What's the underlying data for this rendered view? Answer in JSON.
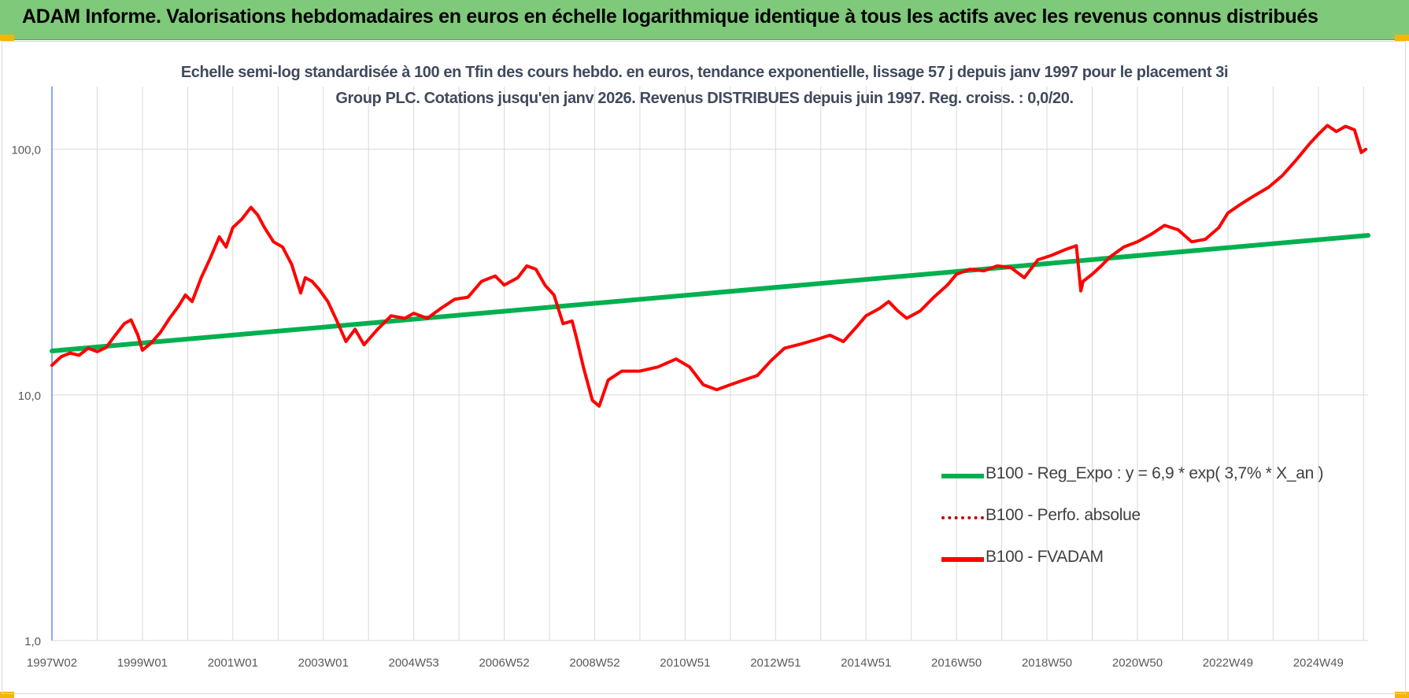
{
  "banner": {
    "title": "ADAM Informe. Valorisations hebdomadaires en euros en échelle logarithmique identique à tous les actifs avec les revenus connus distribués"
  },
  "colors": {
    "banner_bg": "#7fc97a",
    "corner_accent": "#f2b705",
    "trend_line": "#00b050",
    "fvadam_line": "#ff0000",
    "perfo_line": "#c00000",
    "title_text": "#404a5e",
    "grid": "#d9d9d9",
    "axis": "#4472c4"
  },
  "chart_data": {
    "type": "line",
    "title": "Echelle semi-log standardisée à 100 en Tfin des cours hebdo. en euros, tendance exponentielle, lissage 57 j depuis janv 1997 pour le placement 3i Group PLC. Cotations jusqu'en janv 2026. Revenus DISTRIBUES depuis juin 1997. Reg. croiss. : 0,0/20.",
    "xlabel": "",
    "ylabel": "",
    "y_scale": "log",
    "ylim": [
      1,
      180
    ],
    "y_ticks": [
      1,
      10,
      100
    ],
    "y_tick_labels": [
      "1,0",
      "10,0",
      "100,0"
    ],
    "xlim": [
      1997.0,
      2026.1
    ],
    "x_tick_labels": [
      "1997W02",
      "1999W01",
      "2001W01",
      "2003W01",
      "2004W53",
      "2006W52",
      "2008W52",
      "2010W51",
      "2012W51",
      "2014W51",
      "2016W50",
      "2018W50",
      "2020W50",
      "2022W49",
      "2024W49"
    ],
    "x_tick_positions": [
      1997.0,
      1999.0,
      2001.0,
      2003.0,
      2005.0,
      2007.0,
      2009.0,
      2011.0,
      2013.0,
      2015.0,
      2017.0,
      2019.0,
      2021.0,
      2023.0,
      2025.0
    ],
    "grid": true,
    "legend_position": "bottom-right",
    "series": [
      {
        "name": "B100 - Reg_Expo : y = 6,9 * exp( 3,7% *  X_an )",
        "style": "solid",
        "color": "#00b050",
        "x": [
          1997.0,
          2026.1
        ],
        "values": [
          15.1,
          44.6
        ]
      },
      {
        "name": "B100 - Perfo. absolue",
        "style": "dotted",
        "color": "#c00000",
        "x": [],
        "values": []
      },
      {
        "name": "B100 - FVADAM",
        "style": "solid",
        "color": "#ff0000",
        "x": [
          1997.0,
          1997.2,
          1997.4,
          1997.6,
          1997.8,
          1998.0,
          1998.2,
          1998.4,
          1998.6,
          1998.75,
          1998.9,
          1999.0,
          1999.2,
          1999.4,
          1999.6,
          1999.8,
          1999.95,
          2000.1,
          2000.3,
          2000.5,
          2000.7,
          2000.85,
          2001.0,
          2001.2,
          2001.4,
          2001.55,
          2001.7,
          2001.9,
          2002.1,
          2002.3,
          2002.5,
          2002.6,
          2002.75,
          2002.9,
          2003.1,
          2003.3,
          2003.5,
          2003.7,
          2003.9,
          2004.2,
          2004.5,
          2004.8,
          2005.0,
          2005.3,
          2005.6,
          2005.9,
          2006.2,
          2006.5,
          2006.8,
          2007.0,
          2007.3,
          2007.5,
          2007.7,
          2007.9,
          2008.1,
          2008.3,
          2008.5,
          2008.6,
          2008.75,
          2008.95,
          2009.1,
          2009.3,
          2009.6,
          2010.0,
          2010.4,
          2010.8,
          2011.1,
          2011.4,
          2011.7,
          2012.0,
          2012.3,
          2012.6,
          2012.9,
          2013.2,
          2013.5,
          2013.9,
          2014.2,
          2014.5,
          2014.8,
          2015.0,
          2015.3,
          2015.5,
          2015.7,
          2015.9,
          2016.2,
          2016.5,
          2016.8,
          2017.0,
          2017.3,
          2017.6,
          2017.9,
          2018.2,
          2018.5,
          2018.8,
          2019.1,
          2019.4,
          2019.65,
          2019.75,
          2019.8,
          2020.0,
          2020.2,
          2020.4,
          2020.7,
          2021.0,
          2021.3,
          2021.6,
          2021.9,
          2022.2,
          2022.5,
          2022.8,
          2023.0,
          2023.3,
          2023.6,
          2023.9,
          2024.2,
          2024.5,
          2024.8,
          2025.0,
          2025.2,
          2025.4,
          2025.6,
          2025.8,
          2025.95,
          2026.05
        ],
        "values": [
          13.2,
          14.3,
          14.8,
          14.5,
          15.5,
          15.0,
          15.6,
          17.5,
          19.5,
          20.2,
          17.5,
          15.2,
          16.3,
          18.0,
          20.5,
          23.0,
          25.5,
          24.0,
          30.0,
          36.0,
          44.0,
          40.0,
          48.0,
          52.0,
          58.0,
          54.0,
          48.0,
          42.0,
          40.0,
          34.0,
          26.0,
          30.0,
          29.0,
          27.0,
          24.0,
          20.0,
          16.5,
          18.5,
          16.0,
          18.5,
          21.0,
          20.5,
          21.5,
          20.5,
          22.5,
          24.5,
          25.0,
          29.0,
          30.5,
          28.0,
          30.0,
          33.5,
          32.5,
          28.0,
          25.5,
          19.5,
          20.0,
          17.0,
          13.0,
          9.5,
          9.0,
          11.5,
          12.5,
          12.5,
          13.0,
          14.0,
          13.0,
          11.0,
          10.5,
          11.0,
          11.5,
          12.0,
          13.8,
          15.5,
          16.0,
          16.8,
          17.5,
          16.5,
          19.0,
          21.0,
          22.5,
          24.0,
          22.0,
          20.5,
          22.0,
          25.0,
          28.0,
          31.0,
          32.5,
          32.0,
          33.5,
          33.0,
          30.0,
          35.5,
          37.0,
          39.0,
          40.5,
          26.5,
          29.0,
          31.0,
          33.5,
          36.5,
          40.0,
          42.0,
          45.0,
          49.0,
          47.0,
          42.0,
          43.0,
          48.0,
          55.0,
          60.0,
          65.0,
          70.0,
          78.0,
          90.0,
          105.0,
          115.0,
          125.0,
          118.0,
          124.0,
          120.0,
          97.0,
          100.0
        ]
      }
    ]
  }
}
